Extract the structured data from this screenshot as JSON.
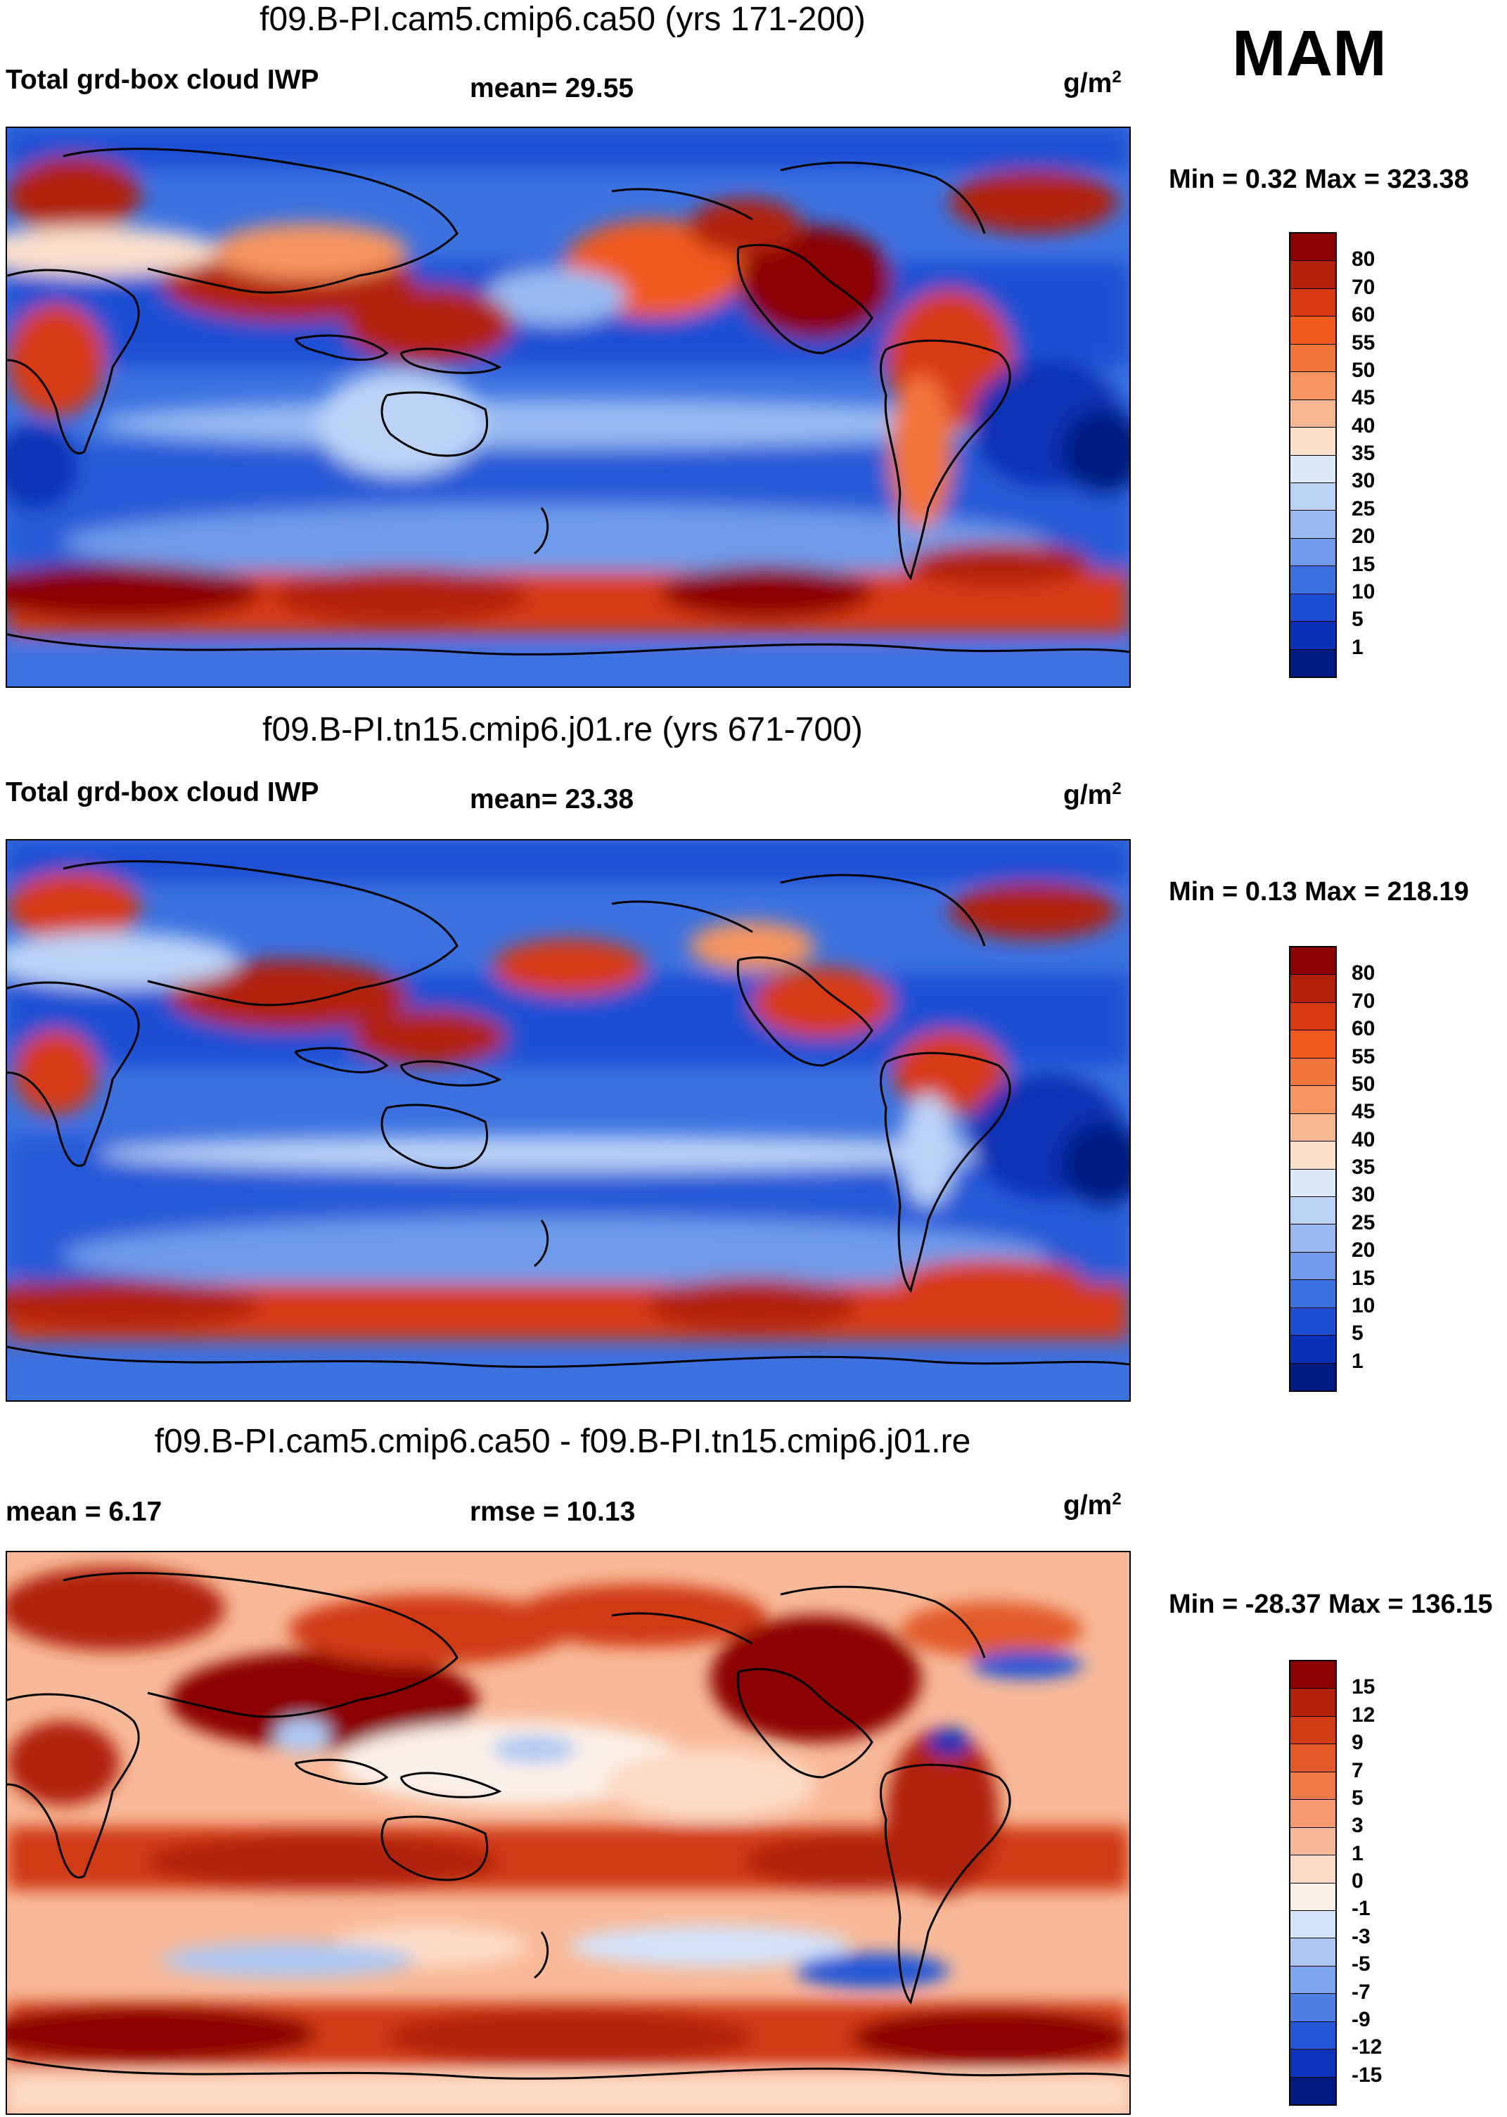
{
  "season": "MAM",
  "chart_data": [
    {
      "type": "heatmap",
      "title": "f09.B-PI.cam5.cmip6.ca50 (yrs 171-200)",
      "left_label": "Total grd-box cloud IWP",
      "center_label": "mean=  29.55",
      "unit": "g/m",
      "unit_sup": "2",
      "stats": "Min =   0.32 Max = 323.38",
      "mean": 29.55,
      "min": 0.32,
      "max": 323.38,
      "colorbar_levels": [
        "80",
        "70",
        "60",
        "55",
        "50",
        "45",
        "40",
        "35",
        "30",
        "25",
        "20",
        "15",
        "10",
        "5",
        "1"
      ],
      "colorbar_colors": [
        "#8b0000",
        "#b0200a",
        "#d73a12",
        "#f05a1e",
        "#f3753a",
        "#f6955f",
        "#f8b893",
        "#fbe0cc",
        "#dbe9fb",
        "#bcd3f6",
        "#98baf1",
        "#6f9bea",
        "#3c72e0",
        "#1e4fd3",
        "#0a30b5",
        "#001b80"
      ]
    },
    {
      "type": "heatmap",
      "title": "f09.B-PI.tn15.cmip6.j01.re (yrs 671-700)",
      "left_label": "Total grd-box cloud IWP",
      "center_label": "mean=  23.38",
      "unit": "g/m",
      "unit_sup": "2",
      "stats": "Min =   0.13 Max = 218.19",
      "mean": 23.38,
      "min": 0.13,
      "max": 218.19,
      "colorbar_levels": [
        "80",
        "70",
        "60",
        "55",
        "50",
        "45",
        "40",
        "35",
        "30",
        "25",
        "20",
        "15",
        "10",
        "5",
        "1"
      ],
      "colorbar_colors": [
        "#8b0000",
        "#b0200a",
        "#d73a12",
        "#f05a1e",
        "#f3753a",
        "#f6955f",
        "#f8b893",
        "#fbe0cc",
        "#dbe9fb",
        "#bcd3f6",
        "#98baf1",
        "#6f9bea",
        "#3c72e0",
        "#1e4fd3",
        "#0a30b5",
        "#001b80"
      ]
    },
    {
      "type": "heatmap",
      "title": "f09.B-PI.cam5.cmip6.ca50 - f09.B-PI.tn15.cmip6.j01.re",
      "left_label": "mean =   6.17",
      "center_label": "rmse =  10.13",
      "unit": "g/m",
      "unit_sup": "2",
      "stats": "Min = -28.37 Max = 136.15",
      "mean": 6.17,
      "rmse": 10.13,
      "min": -28.37,
      "max": 136.15,
      "colorbar_levels": [
        "15",
        "12",
        "9",
        "7",
        "5",
        "3",
        "1",
        "0",
        "-1",
        "-3",
        "-5",
        "-7",
        "-9",
        "-12",
        "-15"
      ],
      "colorbar_colors": [
        "#8b0000",
        "#b0200a",
        "#d03a14",
        "#e25a2a",
        "#ee7a48",
        "#f59a70",
        "#f8b998",
        "#fcdcc6",
        "#fbf0e8",
        "#d4e2f8",
        "#aec8f2",
        "#7fa6ec",
        "#4f7fe2",
        "#2456d6",
        "#0b32b8",
        "#001a80"
      ]
    }
  ]
}
